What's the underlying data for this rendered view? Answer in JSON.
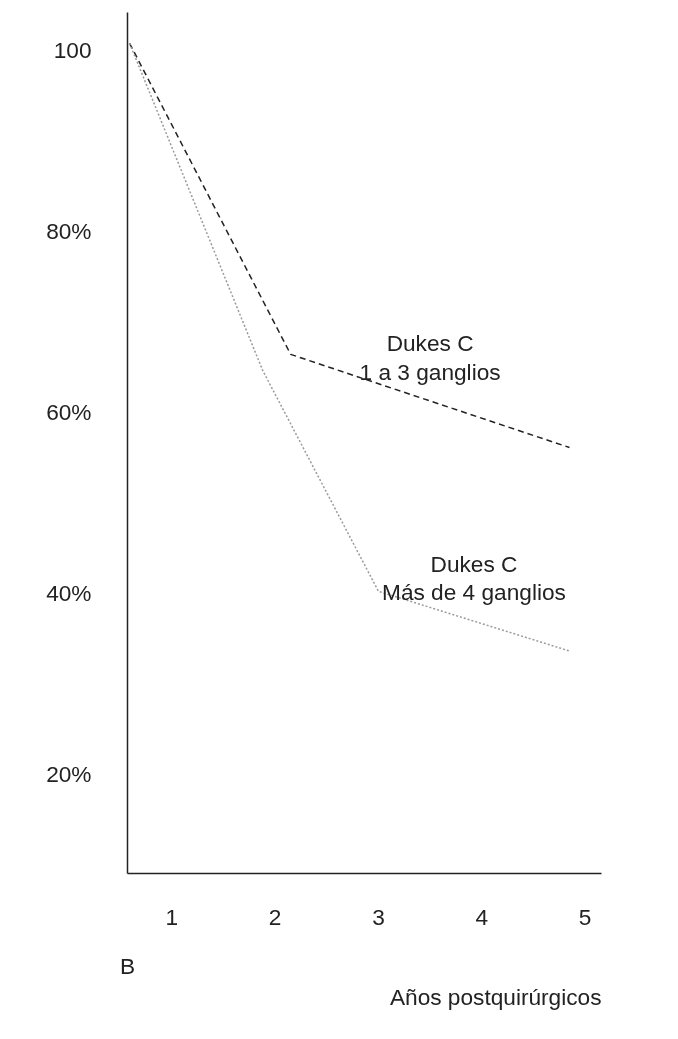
{
  "chart_data": {
    "type": "line",
    "xlabel": "Años postquirúrgicos",
    "x": [
      0.59,
      2.15,
      4.85
    ],
    "series": [
      {
        "name": "Dukes C\n1 a 3 ganglios",
        "color": "#222222",
        "line_style": "dashed",
        "values": [
          100.8,
          66.4,
          56.1
        ]
      },
      {
        "name": "Dukes C\nMás de 4 ganglios",
        "color": "#9a9a9a",
        "line_style": "dotted",
        "x": [
          0.59,
          1.88,
          3.0,
          4.85
        ],
        "values": [
          100.8,
          64.6,
          40.2,
          33.6
        ]
      }
    ],
    "xlim": [
      0.57,
      5.16
    ],
    "ylim": [
      9,
      104.2
    ],
    "xticks": [
      1,
      2,
      3,
      4,
      5
    ],
    "yticks": [
      100,
      {
        "value": 80,
        "label": "80%"
      },
      {
        "value": 60,
        "label": "60%"
      },
      {
        "value": 40,
        "label": "40%"
      },
      {
        "value": 20,
        "label": "20%"
      }
    ],
    "annotations": [
      "B"
    ],
    "grid": false,
    "legend": false,
    "marker": "none"
  }
}
